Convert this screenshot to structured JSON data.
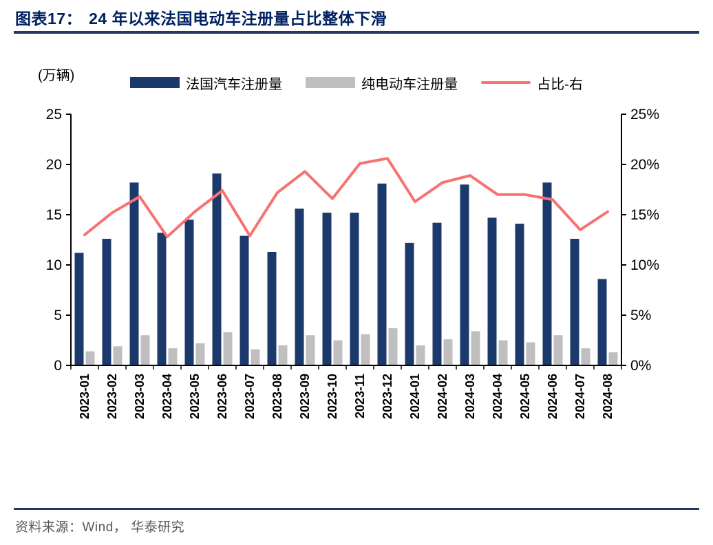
{
  "header": {
    "figure_label": "图表17：",
    "title": "24 年以来法国电动车注册量占比整体下滑"
  },
  "chart_data": {
    "type": "bar+line",
    "unit_label": "(万辆)",
    "categories": [
      "2023-01",
      "2023-02",
      "2023-03",
      "2023-04",
      "2023-05",
      "2023-06",
      "2023-07",
      "2023-08",
      "2023-09",
      "2023-10",
      "2023-11",
      "2023-12",
      "2024-01",
      "2024-02",
      "2024-03",
      "2024-04",
      "2024-05",
      "2024-06",
      "2024-07",
      "2024-08"
    ],
    "series": [
      {
        "name": "法国汽车注册量",
        "type": "bar",
        "axis": "left",
        "color": "#1B3A6B",
        "values": [
          11.2,
          12.6,
          18.2,
          13.2,
          14.5,
          19.1,
          12.9,
          11.3,
          15.6,
          15.2,
          15.2,
          18.1,
          12.2,
          14.2,
          18.0,
          14.7,
          14.1,
          18.2,
          12.6,
          8.6
        ]
      },
      {
        "name": "纯电动车注册量",
        "type": "bar",
        "axis": "left",
        "color": "#BFBFBF",
        "values": [
          1.4,
          1.9,
          3.0,
          1.7,
          2.2,
          3.3,
          1.6,
          2.0,
          3.0,
          2.5,
          3.1,
          3.7,
          2.0,
          2.6,
          3.4,
          2.5,
          2.3,
          3.0,
          1.7,
          1.3
        ]
      },
      {
        "name": "占比-右",
        "type": "line",
        "axis": "right",
        "color": "#F87272",
        "values": [
          13.0,
          15.2,
          16.8,
          12.8,
          15.3,
          17.4,
          12.9,
          17.2,
          19.3,
          16.6,
          20.1,
          20.6,
          16.3,
          18.2,
          18.9,
          17.0,
          17.0,
          16.5,
          13.5,
          15.3
        ]
      }
    ],
    "left_axis": {
      "min": 0,
      "max": 25,
      "tick_values": [
        0,
        5,
        10,
        15,
        20,
        25
      ],
      "tick_labels": [
        "0",
        "5",
        "10",
        "15",
        "20",
        "25"
      ]
    },
    "right_axis": {
      "min": 0,
      "max": 25,
      "tick_values": [
        0,
        5,
        10,
        15,
        20,
        25
      ],
      "tick_labels": [
        "0%",
        "5%",
        "10%",
        "15%",
        "20%",
        "25%"
      ]
    },
    "grid": "off",
    "legend_position": "top-center"
  },
  "footer": {
    "source": "资料来源：Wind， 华泰研究"
  }
}
